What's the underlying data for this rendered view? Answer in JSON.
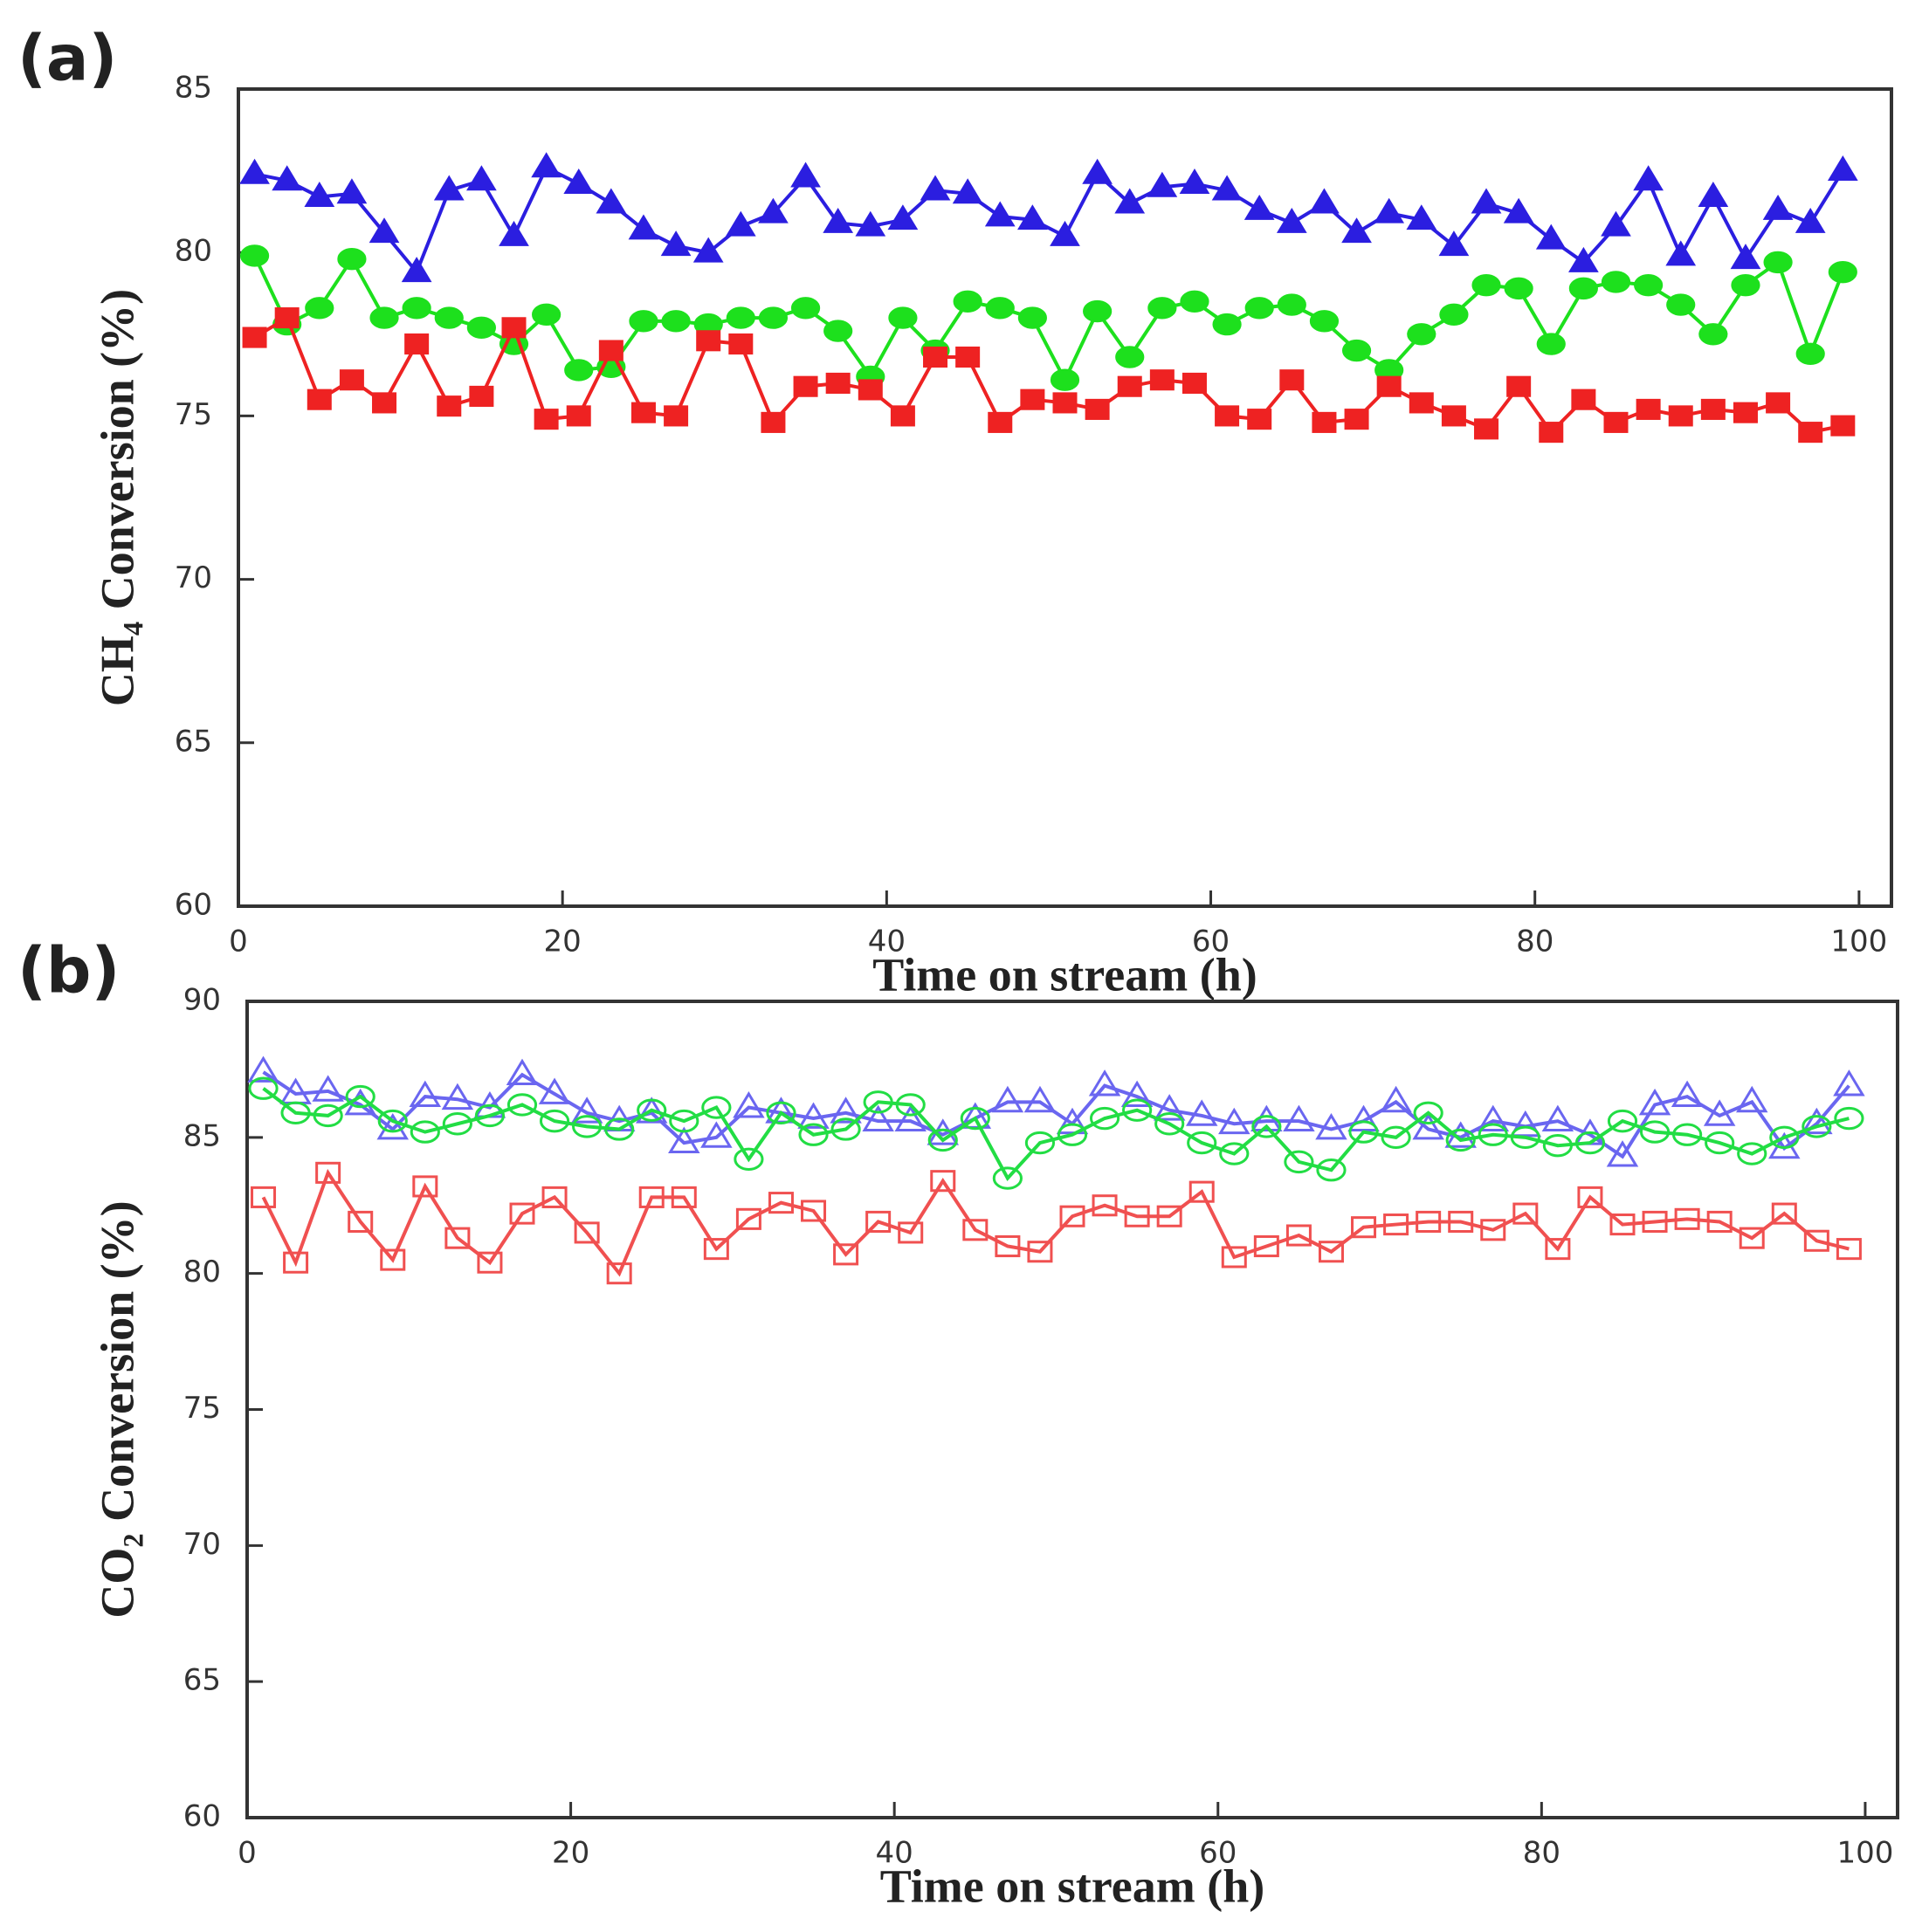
{
  "chart_data": [
    {
      "type": "line",
      "panel_label": "(a)",
      "x_label": "Time on stream (h)",
      "y_label": "CH₄ Conversion (%)",
      "xlim": [
        0,
        102
      ],
      "xticks": [
        0,
        20,
        40,
        60,
        80,
        100
      ],
      "ylim": [
        60,
        85
      ],
      "yticks": [
        60,
        65,
        70,
        75,
        80,
        85
      ],
      "x": [
        1,
        3,
        5,
        7,
        9,
        11,
        13,
        15,
        17,
        19,
        21,
        23,
        25,
        27,
        29,
        31,
        33,
        35,
        37,
        39,
        41,
        43,
        45,
        47,
        49,
        51,
        53,
        55,
        57,
        59,
        61,
        63,
        65,
        67,
        69,
        71,
        73,
        75,
        77,
        79,
        81,
        83,
        85,
        87,
        89,
        91,
        93,
        95,
        97,
        99
      ],
      "series": [
        {
          "color": "#2b1ee0",
          "marker": "triangle",
          "filled": true,
          "values": [
            82.4,
            82.2,
            81.7,
            81.8,
            80.6,
            79.4,
            81.9,
            82.2,
            80.5,
            82.6,
            82.1,
            81.5,
            80.7,
            80.2,
            80.0,
            80.8,
            81.2,
            82.3,
            80.9,
            80.8,
            81.0,
            81.9,
            81.8,
            81.1,
            81.0,
            80.5,
            82.4,
            81.5,
            82.0,
            82.1,
            81.9,
            81.3,
            80.9,
            81.5,
            80.6,
            81.2,
            81.0,
            80.2,
            81.5,
            81.2,
            80.4,
            79.7,
            80.8,
            82.2,
            79.9,
            81.7,
            79.8,
            81.3,
            80.9,
            82.5
          ]
        },
        {
          "color": "#1de01d",
          "marker": "circle",
          "filled": true,
          "values": [
            79.9,
            77.8,
            78.3,
            79.8,
            78.0,
            78.3,
            78.0,
            77.7,
            77.2,
            78.1,
            76.4,
            76.5,
            77.9,
            77.9,
            77.8,
            78.0,
            78.0,
            78.3,
            77.6,
            76.2,
            78.0,
            77.0,
            78.5,
            78.3,
            78.0,
            76.1,
            78.2,
            76.8,
            78.3,
            78.5,
            77.8,
            78.3,
            78.4,
            77.9,
            77.0,
            76.4,
            77.5,
            78.1,
            79.0,
            78.9,
            77.2,
            78.9,
            79.1,
            79.0,
            78.4,
            77.5,
            79.0,
            79.7,
            76.9,
            79.4
          ]
        },
        {
          "color": "#ee2222",
          "marker": "square",
          "filled": true,
          "values": [
            77.4,
            78.0,
            75.5,
            76.1,
            75.4,
            77.2,
            75.3,
            75.6,
            77.7,
            74.9,
            75.0,
            77.0,
            75.1,
            75.0,
            77.3,
            77.2,
            74.8,
            75.9,
            76.0,
            75.8,
            75.0,
            76.8,
            76.8,
            74.8,
            75.5,
            75.4,
            75.2,
            75.9,
            76.1,
            76.0,
            75.0,
            74.9,
            76.1,
            74.8,
            74.9,
            75.9,
            75.4,
            75.0,
            74.6,
            75.9,
            74.5,
            75.5,
            74.8,
            75.2,
            75.0,
            75.2,
            75.1,
            75.4,
            74.5,
            74.7
          ]
        }
      ]
    },
    {
      "type": "line",
      "panel_label": "(b)",
      "x_label": "Time on stream (h)",
      "y_label": "CO₂ Conversion (%)",
      "xlim": [
        0,
        102
      ],
      "xticks": [
        0,
        20,
        40,
        60,
        80,
        100
      ],
      "ylim": [
        60,
        90
      ],
      "yticks": [
        60,
        65,
        70,
        75,
        80,
        85,
        90
      ],
      "x": [
        1,
        3,
        5,
        7,
        9,
        11,
        13,
        15,
        17,
        19,
        21,
        23,
        25,
        27,
        29,
        31,
        33,
        35,
        37,
        39,
        41,
        43,
        45,
        47,
        49,
        51,
        53,
        55,
        57,
        59,
        61,
        63,
        65,
        67,
        69,
        71,
        73,
        75,
        77,
        79,
        81,
        83,
        85,
        87,
        89,
        91,
        93,
        95,
        97,
        99
      ],
      "series": [
        {
          "color": "#6a66f0",
          "marker": "triangle",
          "filled": false,
          "values": [
            87.4,
            86.6,
            86.7,
            86.2,
            85.3,
            86.5,
            86.4,
            86.1,
            87.3,
            86.6,
            85.9,
            85.6,
            85.9,
            84.8,
            85.0,
            86.1,
            85.9,
            85.7,
            85.9,
            85.6,
            85.6,
            85.1,
            85.7,
            86.3,
            86.3,
            85.5,
            86.9,
            86.5,
            86.0,
            85.8,
            85.5,
            85.6,
            85.6,
            85.3,
            85.6,
            86.3,
            85.3,
            85.0,
            85.6,
            85.4,
            85.6,
            85.1,
            84.3,
            86.2,
            86.5,
            85.8,
            86.3,
            84.6,
            85.5,
            86.9
          ]
        },
        {
          "color": "#22dd44",
          "marker": "circle",
          "filled": false,
          "values": [
            86.8,
            85.9,
            85.8,
            86.5,
            85.6,
            85.2,
            85.5,
            85.8,
            86.2,
            85.6,
            85.4,
            85.3,
            86.0,
            85.6,
            86.1,
            84.2,
            85.9,
            85.1,
            85.3,
            86.3,
            86.2,
            84.9,
            85.7,
            83.5,
            84.8,
            85.1,
            85.7,
            86.0,
            85.5,
            84.8,
            84.4,
            85.4,
            84.1,
            83.8,
            85.2,
            85.0,
            85.9,
            84.9,
            85.1,
            85.0,
            84.7,
            84.8,
            85.6,
            85.2,
            85.1,
            84.8,
            84.4,
            85.0,
            85.4,
            85.7
          ]
        },
        {
          "color": "#f05050",
          "marker": "square",
          "filled": false,
          "values": [
            82.8,
            80.4,
            83.7,
            81.9,
            80.5,
            83.2,
            81.3,
            80.4,
            82.2,
            82.8,
            81.5,
            80.0,
            82.8,
            82.8,
            80.9,
            82.0,
            82.6,
            82.3,
            80.7,
            81.9,
            81.5,
            83.4,
            81.6,
            81.0,
            80.8,
            82.1,
            82.5,
            82.1,
            82.1,
            83.0,
            80.6,
            81.0,
            81.4,
            80.8,
            81.7,
            81.8,
            81.9,
            81.9,
            81.6,
            82.2,
            80.9,
            82.8,
            81.8,
            81.9,
            82.0,
            81.9,
            81.3,
            82.2,
            81.2,
            80.9
          ]
        }
      ]
    }
  ]
}
